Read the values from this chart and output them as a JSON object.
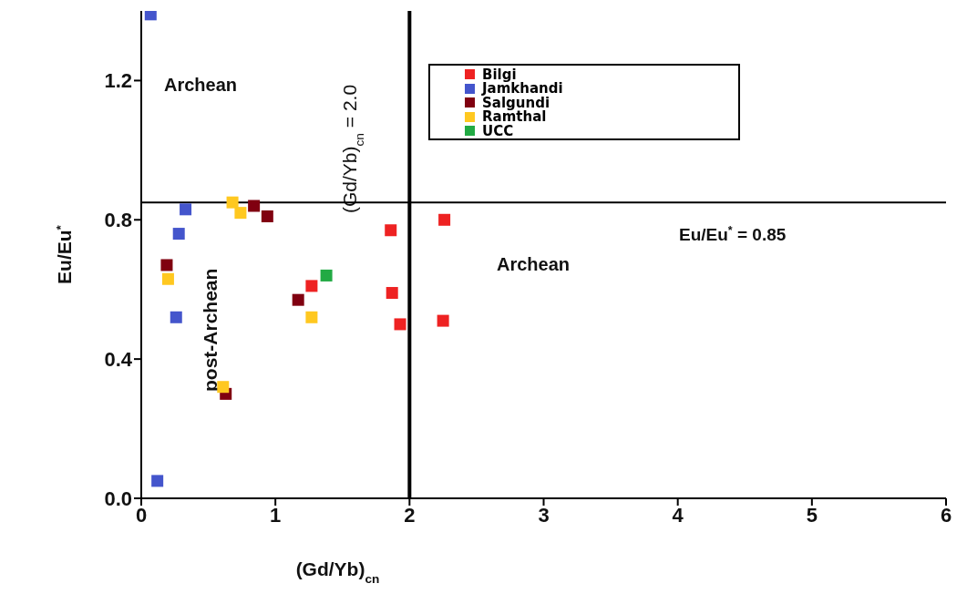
{
  "chart_data": {
    "type": "scatter",
    "xlabel": "(Gd/Yb)$_{cn}$",
    "ylabel": "Eu/Eu$^{*}$",
    "xlim": [
      0,
      6
    ],
    "xticks": [
      0,
      1,
      2,
      3,
      4,
      5,
      6
    ],
    "ylim": [
      0,
      1.4
    ],
    "yticks": [
      {
        "value": 0,
        "label": "0.0"
      },
      0.4,
      0.8,
      1.2
    ],
    "marker": "square",
    "legend": "top right",
    "grid": false,
    "series": [
      {
        "name": "Bilgi",
        "color": "#ee2222",
        "x": [
          1.86,
          2.26,
          1.87,
          1.93,
          2.25,
          1.27
        ],
        "values": [
          0.77,
          0.8,
          0.59,
          0.5,
          0.51,
          0.61
        ]
      },
      {
        "name": "Jamkhandi",
        "color": "#4455cc",
        "x": [
          0.07,
          0.33,
          0.28,
          0.26,
          0.12
        ],
        "values": [
          1.39,
          0.83,
          0.76,
          0.52,
          0.05
        ]
      },
      {
        "name": "Salgundi",
        "color": "#800010",
        "x": [
          0.19,
          0.84,
          0.94,
          1.17,
          0.63
        ],
        "values": [
          0.67,
          0.84,
          0.81,
          0.57,
          0.3
        ]
      },
      {
        "name": "Ramthal",
        "color": "#ffc820",
        "x": [
          0.68,
          0.74,
          0.2,
          1.27,
          0.61
        ],
        "values": [
          0.85,
          0.82,
          0.63,
          0.52,
          0.32
        ]
      },
      {
        "name": "UCC",
        "color": "#22aa44",
        "x": [
          1.38
        ],
        "values": [
          0.64
        ]
      }
    ],
    "ref_lines": [
      {
        "axis": "x",
        "value": 2,
        "label": "(Gd/Yb)$_{cn}$ = 2.0"
      },
      {
        "axis": "y",
        "value": 0.85,
        "label": "Eu/Eu$^{*}$ = 0.85"
      }
    ],
    "annotations": [
      "Archean",
      "Archean",
      "post-Archean"
    ]
  }
}
